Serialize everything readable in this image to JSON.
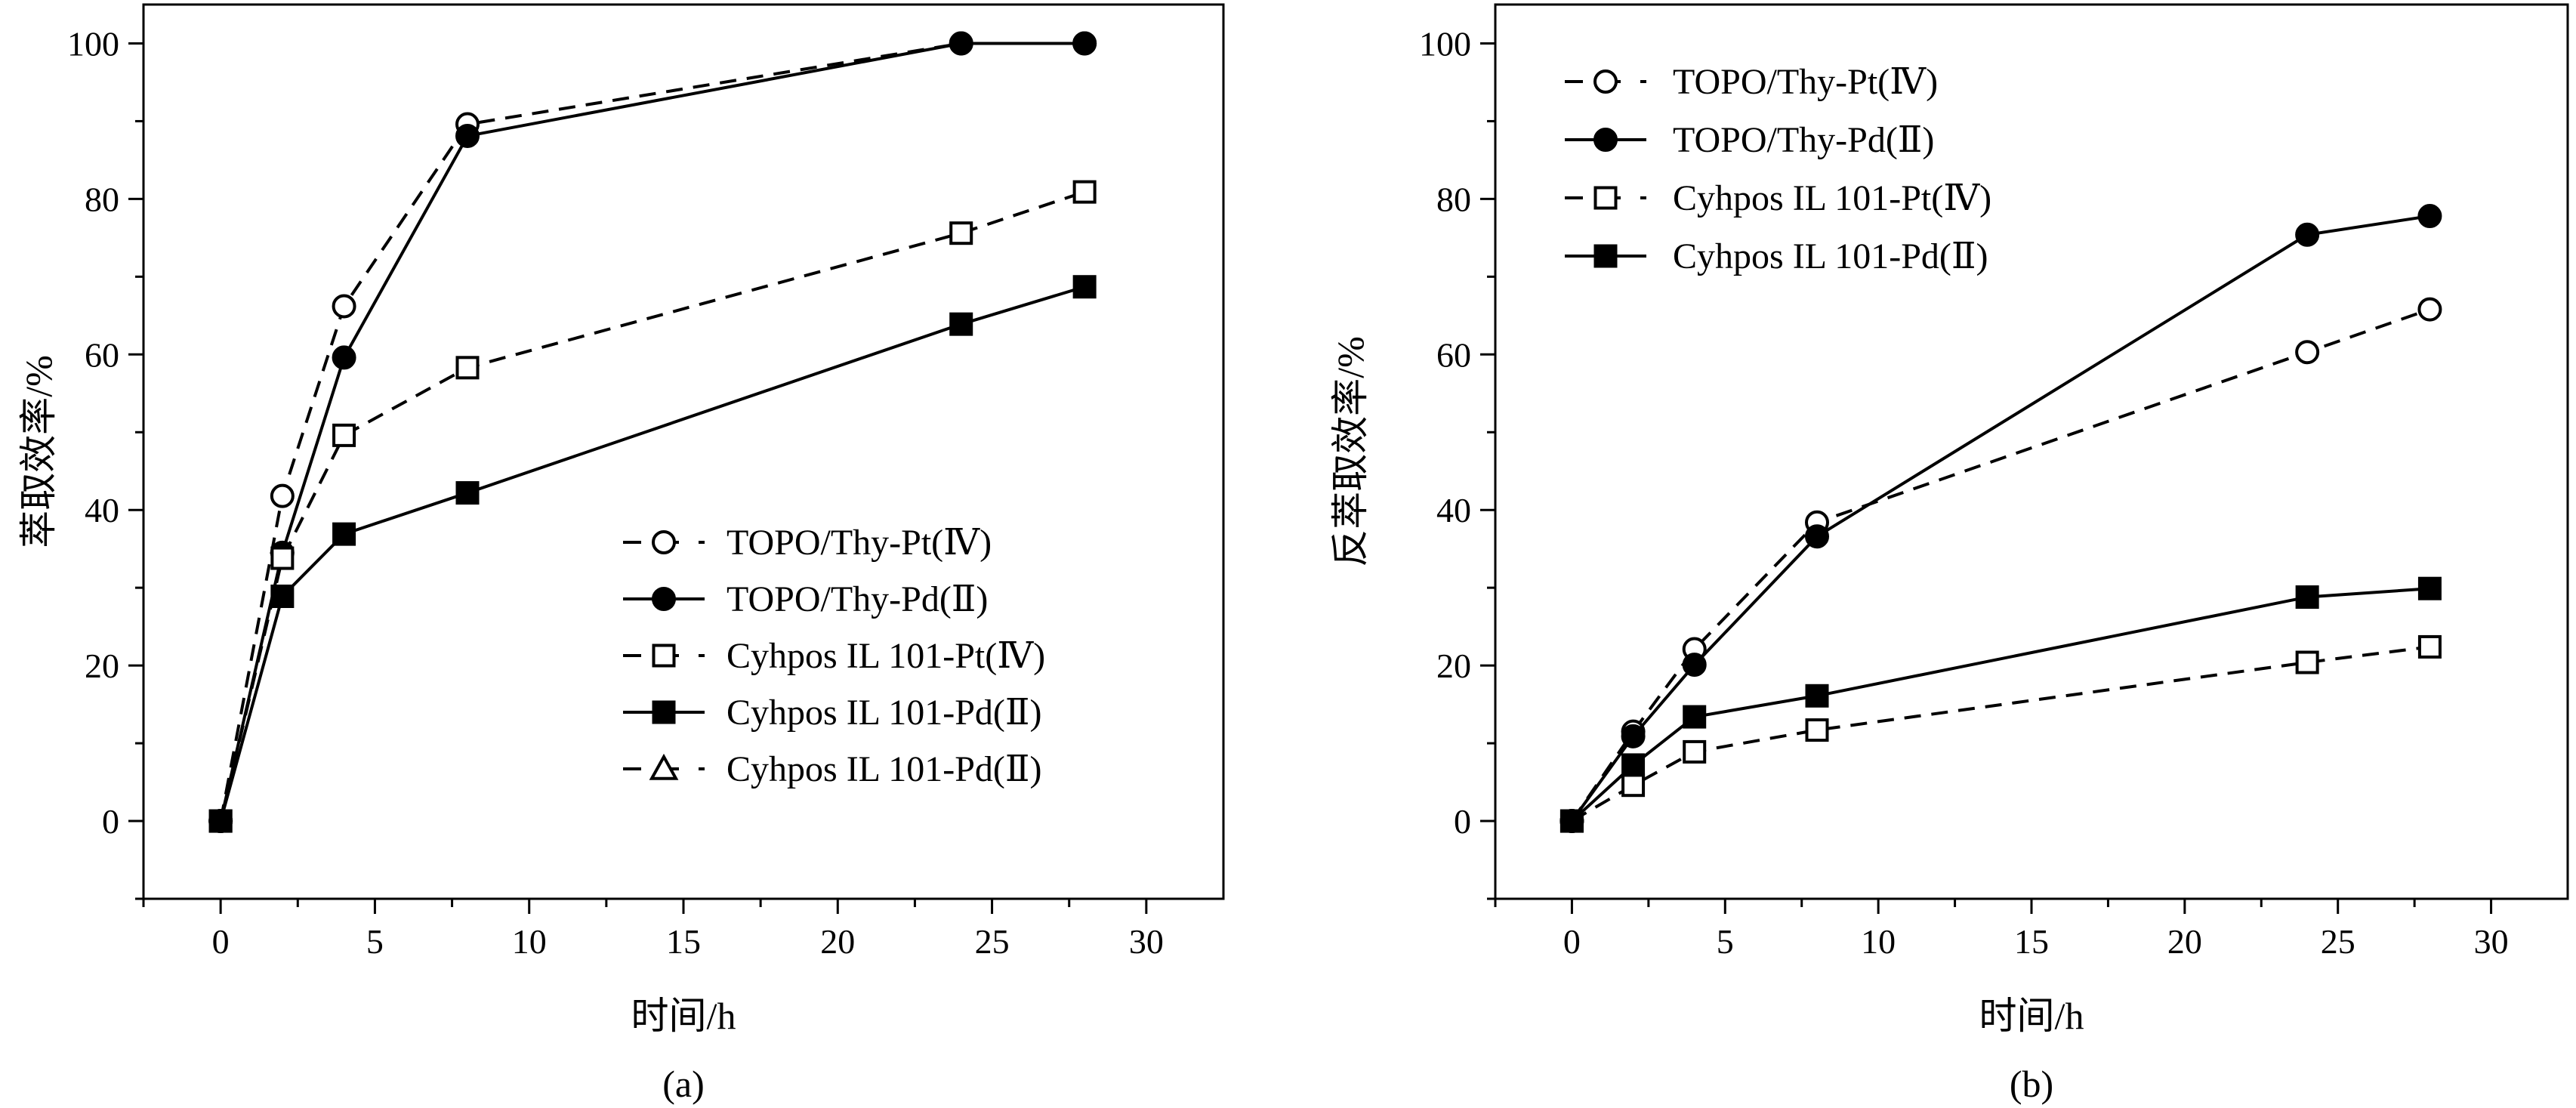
{
  "chart_data": [
    {
      "type": "line",
      "caption": "(a)",
      "xlabel": "时间/h",
      "ylabel": "萃取效率/%",
      "xlim": [
        -2.5,
        32.5
      ],
      "ylim": [
        -10,
        105
      ],
      "xticks": [
        0,
        5,
        10,
        15,
        20,
        25,
        30
      ],
      "yticks": [
        0,
        20,
        40,
        60,
        80,
        100
      ],
      "legend_position": "bottom-right",
      "series": [
        {
          "name": "TOPO/Thy-Pt(Ⅳ)",
          "marker": "circle-open",
          "line": "dashed",
          "x": [
            0,
            2,
            4,
            8,
            24,
            28
          ],
          "y": [
            0,
            41.8,
            66.2,
            89.6,
            100,
            100
          ]
        },
        {
          "name": "TOPO/Thy-Pd(Ⅱ)",
          "marker": "circle-filled",
          "line": "solid",
          "x": [
            0,
            2,
            4,
            8,
            24,
            28
          ],
          "y": [
            0,
            34.5,
            59.6,
            88.1,
            100,
            100
          ]
        },
        {
          "name": "Cyhpos IL 101-Pt(Ⅳ)",
          "marker": "square-open",
          "line": "dashed",
          "x": [
            0,
            2,
            4,
            8,
            24,
            28
          ],
          "y": [
            0,
            33.8,
            49.6,
            58.3,
            75.6,
            80.9
          ]
        },
        {
          "name": "Cyhpos IL 101-Pd(Ⅱ)",
          "marker": "square-filled",
          "line": "solid",
          "x": [
            0,
            2,
            4,
            8,
            24,
            28
          ],
          "y": [
            0,
            28.9,
            36.9,
            42.2,
            63.9,
            68.7
          ]
        },
        {
          "name": "Cyhpos IL 101-Pd(Ⅱ)",
          "marker": "triangle-open",
          "line": "dashed",
          "x": [],
          "y": []
        }
      ]
    },
    {
      "type": "line",
      "caption": "(b)",
      "xlabel": "时间/h",
      "ylabel": "反萃取效率/%",
      "xlim": [
        -2.5,
        32.5
      ],
      "ylim": [
        -10,
        105
      ],
      "xticks": [
        0,
        5,
        10,
        15,
        20,
        25,
        30
      ],
      "yticks": [
        0,
        20,
        40,
        60,
        80,
        100
      ],
      "legend_position": "top-left",
      "series": [
        {
          "name": "TOPO/Thy-Pt(Ⅳ)",
          "marker": "circle-open",
          "line": "dashed",
          "x": [
            0,
            2,
            4,
            8,
            24,
            28
          ],
          "y": [
            0,
            11.5,
            22.1,
            38.4,
            60.3,
            65.8
          ]
        },
        {
          "name": "TOPO/Thy-Pd(Ⅱ)",
          "marker": "circle-filled",
          "line": "solid",
          "x": [
            0,
            2,
            4,
            8,
            24,
            28
          ],
          "y": [
            0,
            10.9,
            20.1,
            36.6,
            75.4,
            77.8
          ]
        },
        {
          "name": "Cyhpos IL 101-Pt(Ⅳ)",
          "marker": "square-open",
          "line": "dashed",
          "x": [
            0,
            2,
            4,
            8,
            24,
            28
          ],
          "y": [
            0,
            4.6,
            8.9,
            11.7,
            20.4,
            22.4
          ]
        },
        {
          "name": "Cyhpos IL 101-Pd(Ⅱ)",
          "marker": "square-filled",
          "line": "solid",
          "x": [
            0,
            2,
            4,
            8,
            24,
            28
          ],
          "y": [
            0,
            7.2,
            13.4,
            16.1,
            28.8,
            29.9
          ]
        }
      ]
    }
  ]
}
